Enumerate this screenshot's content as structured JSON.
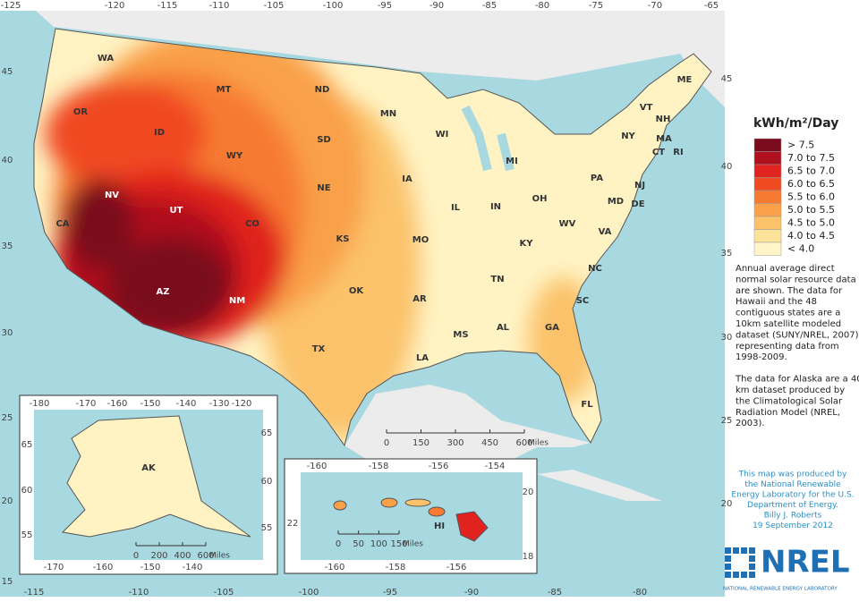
{
  "map": {
    "lon_top": [
      -125,
      -120,
      -115,
      -110,
      -105,
      -100,
      -95,
      -90,
      -85,
      -80,
      -75,
      -70,
      -65
    ],
    "lon_bottom": [
      -115,
      -110,
      -105,
      -100,
      -95,
      -90,
      -85,
      -80
    ],
    "lat_left": [
      45,
      40,
      35,
      30,
      25,
      20,
      15
    ],
    "lat_right": [
      45,
      40,
      35,
      30,
      25,
      20
    ],
    "states": [
      "WA",
      "OR",
      "ID",
      "MT",
      "WY",
      "ND",
      "SD",
      "NE",
      "CA",
      "NV",
      "UT",
      "CO",
      "KS",
      "AZ",
      "NM",
      "OK",
      "TX",
      "MN",
      "WI",
      "MI",
      "IA",
      "IL",
      "IN",
      "OH",
      "PA",
      "NY",
      "VT",
      "NH",
      "ME",
      "MA",
      "CT",
      "RI",
      "NJ",
      "DE",
      "MD",
      "WV",
      "VA",
      "KY",
      "MO",
      "TN",
      "NC",
      "SC",
      "GA",
      "AL",
      "MS",
      "AR",
      "LA",
      "FL"
    ],
    "scale": {
      "ticks": [
        0,
        150,
        300,
        450,
        600
      ],
      "unit": "Miles"
    },
    "alaska": {
      "label": "AK",
      "lon_top": [
        -180,
        -170,
        -160,
        -150,
        -140,
        -130,
        -120
      ],
      "lat_left": [
        65,
        60,
        55
      ],
      "lat_right": [
        65,
        60,
        55
      ],
      "lon_bottom": [
        -170,
        -160,
        -150,
        -140
      ],
      "scale": {
        "ticks": [
          0,
          200,
          400,
          600
        ],
        "unit": "Miles"
      }
    },
    "hawaii": {
      "label": "HI",
      "lon_top": [
        -160,
        -158,
        -156,
        -154
      ],
      "lat_left": [
        22
      ],
      "lat_right": [
        20,
        18
      ],
      "lon_bottom": [
        -160,
        -158,
        -156
      ],
      "scale": {
        "ticks": [
          0,
          50,
          100,
          150
        ],
        "unit": "Miles"
      }
    }
  },
  "legend": {
    "title": "kWh/m²/Day",
    "items": [
      {
        "label": "> 7.5",
        "color": "#7a0c1e"
      },
      {
        "label": "7.0 to 7.5",
        "color": "#b0101e"
      },
      {
        "label": "6.5 to 7.0",
        "color": "#e0231f"
      },
      {
        "label": "6.0 to 6.5",
        "color": "#f04a22"
      },
      {
        "label": "5.5 to 6.0",
        "color": "#f77a33"
      },
      {
        "label": "5.0 to 5.5",
        "color": "#f9a048"
      },
      {
        "label": "4.5 to 5.0",
        "color": "#fbc26a"
      },
      {
        "label": "4.0 to 4.5",
        "color": "#fde29a"
      },
      {
        "label": "< 4.0",
        "color": "#fff5c8"
      }
    ]
  },
  "description": [
    [
      "Annual average direct",
      "normal solar resource data",
      "are shown.  The data for",
      "Hawaii and the 48",
      "contiguous states are a",
      "10km satellite modeled",
      "dataset (SUNY/NREL, 2007)",
      "representing data from",
      "1998-2009."
    ],
    [
      "The data for Alaska are a 40",
      "km dataset produced by",
      "the Climatological Solar",
      "Radiation Model (NREL,",
      "2003)."
    ]
  ],
  "credit": [
    "This map was produced by",
    "the National Renewable",
    "Energy Laboratory for the U.S.",
    "Department of Energy.",
    "Billy J. Roberts",
    "19 September 2012"
  ],
  "logo": {
    "name": "NREL",
    "subtitle": "NATIONAL RENEWABLE ENERGY LABORATORY"
  }
}
